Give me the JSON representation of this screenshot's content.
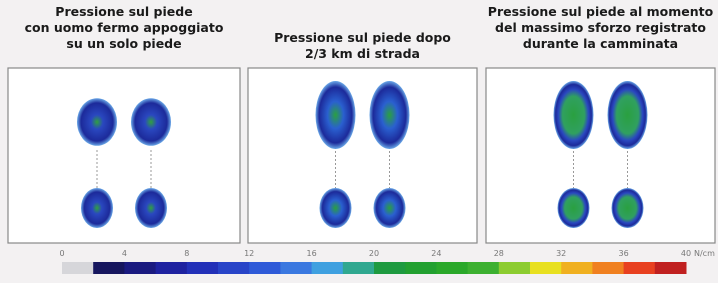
{
  "panels": [
    {
      "title_lines": [
        "Pressione sul piede",
        "con uomo fermo appoggiato",
        "su un solo piede"
      ]
    },
    {
      "title_lines": [
        "Pressione sul piede dopo",
        "2/3 km di strada"
      ]
    },
    {
      "title_lines": [
        "Pressione sul piede al momento",
        "del massimo sforzo registrato",
        "durante la camminata"
      ]
    }
  ],
  "scale": {
    "ticks": [
      0,
      4,
      8,
      12,
      16,
      20,
      24,
      28,
      32,
      36,
      40
    ],
    "unit": "N/cm",
    "colors": [
      "#d6d6da",
      "#16165e",
      "#1a1a80",
      "#1e22a0",
      "#2230b8",
      "#2844c8",
      "#2e5ad8",
      "#3a78e0",
      "#3fa0e0",
      "#30a890",
      "#1e9a40",
      "#22a030",
      "#2aa82a",
      "#3cb030",
      "#8ccc30",
      "#e8e020",
      "#f0b020",
      "#f08020",
      "#e84020",
      "#c02020"
    ]
  }
}
